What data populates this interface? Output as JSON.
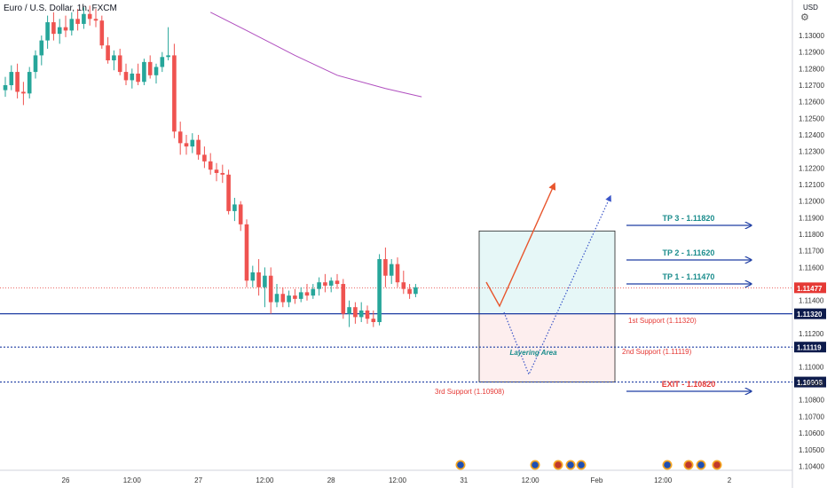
{
  "header": {
    "title": "Euro / U.S. Dollar, 1h, FXCM",
    "currency": "USD"
  },
  "colors": {
    "bull": "#26a69a",
    "bear": "#ef5350",
    "ma": "#b04fbf",
    "level": "#1e3da3",
    "support_text": "#e53935",
    "tp_text": "#1a8c8c",
    "price_tag": "#e53935",
    "green_zone": "#e6f7f7",
    "red_zone": "#fdeeee"
  },
  "chart_data": {
    "type": "candlestick",
    "title": "Euro / U.S. Dollar, 1h, FXCM",
    "y_axis": {
      "ylim": [
        1.1031,
        1.1356
      ],
      "ticks": [
        "1.13000",
        "1.12900",
        "1.12800",
        "1.12700",
        "1.12600",
        "1.12500",
        "1.12400",
        "1.12300",
        "1.12200",
        "1.12100",
        "1.12000",
        "1.11900",
        "1.11800",
        "1.11700",
        "1.11600",
        "1.11400",
        "1.11200",
        "1.11000",
        "1.10900",
        "1.10800",
        "1.10700",
        "1.10600",
        "1.10500",
        "1.10400"
      ],
      "tick_values": [
        1.13,
        1.129,
        1.128,
        1.127,
        1.126,
        1.125,
        1.124,
        1.123,
        1.122,
        1.121,
        1.12,
        1.119,
        1.118,
        1.117,
        1.116,
        1.114,
        1.112,
        1.11,
        1.109,
        1.108,
        1.107,
        1.106,
        1.105,
        1.104
      ]
    },
    "x_axis": {
      "labels": [
        "26",
        "12:00",
        "27",
        "12:00",
        "28",
        "12:00",
        "31",
        "12:00",
        "Feb",
        "12:00",
        "2"
      ],
      "label_bars": [
        10,
        21,
        32,
        43,
        54,
        65,
        76,
        87,
        98,
        109,
        120
      ]
    },
    "candles": [
      [
        1.1267,
        1.1275,
        1.1263,
        1.127
      ],
      [
        1.127,
        1.1282,
        1.1267,
        1.1278
      ],
      [
        1.1278,
        1.1283,
        1.1262,
        1.1266
      ],
      [
        1.1266,
        1.1272,
        1.1258,
        1.1265
      ],
      [
        1.1265,
        1.1281,
        1.1262,
        1.1278
      ],
      [
        1.1278,
        1.1291,
        1.1274,
        1.1288
      ],
      [
        1.1288,
        1.13,
        1.1282,
        1.1297
      ],
      [
        1.1297,
        1.1312,
        1.1292,
        1.1308
      ],
      [
        1.1308,
        1.1314,
        1.1297,
        1.1301
      ],
      [
        1.1301,
        1.131,
        1.1295,
        1.1305
      ],
      [
        1.1305,
        1.1312,
        1.1299,
        1.1303
      ],
      [
        1.1303,
        1.1314,
        1.13,
        1.131
      ],
      [
        1.131,
        1.1316,
        1.1303,
        1.1307
      ],
      [
        1.1307,
        1.1317,
        1.1304,
        1.1313
      ],
      [
        1.1313,
        1.1318,
        1.1306,
        1.131
      ],
      [
        1.131,
        1.1316,
        1.1305,
        1.1309
      ],
      [
        1.1309,
        1.1312,
        1.1292,
        1.1294
      ],
      [
        1.1294,
        1.1299,
        1.1283,
        1.1285
      ],
      [
        1.1285,
        1.1291,
        1.1279,
        1.1288
      ],
      [
        1.1288,
        1.1292,
        1.1276,
        1.1278
      ],
      [
        1.1278,
        1.1283,
        1.127,
        1.1273
      ],
      [
        1.1273,
        1.128,
        1.1268,
        1.1277
      ],
      [
        1.1277,
        1.1283,
        1.127,
        1.1272
      ],
      [
        1.1272,
        1.1286,
        1.127,
        1.1284
      ],
      [
        1.1284,
        1.1288,
        1.1274,
        1.1276
      ],
      [
        1.1276,
        1.1283,
        1.1271,
        1.1281
      ],
      [
        1.1281,
        1.129,
        1.1278,
        1.1287
      ],
      [
        1.1287,
        1.1305,
        1.1285,
        1.1288
      ],
      [
        1.1288,
        1.1295,
        1.1238,
        1.1242
      ],
      [
        1.1242,
        1.1248,
        1.1228,
        1.1235
      ],
      [
        1.1235,
        1.124,
        1.1228,
        1.1233
      ],
      [
        1.1233,
        1.1241,
        1.1229,
        1.1237
      ],
      [
        1.1237,
        1.124,
        1.1225,
        1.1228
      ],
      [
        1.1228,
        1.1233,
        1.122,
        1.1224
      ],
      [
        1.1224,
        1.1229,
        1.1216,
        1.1219
      ],
      [
        1.1219,
        1.1223,
        1.1212,
        1.1217
      ],
      [
        1.1217,
        1.1222,
        1.1211,
        1.1216
      ],
      [
        1.1216,
        1.1219,
        1.1192,
        1.1194
      ],
      [
        1.1194,
        1.1202,
        1.1188,
        1.1198
      ],
      [
        1.1198,
        1.12,
        1.1182,
        1.1186
      ],
      [
        1.1186,
        1.1189,
        1.1148,
        1.1152
      ],
      [
        1.1152,
        1.1161,
        1.1148,
        1.1157
      ],
      [
        1.1157,
        1.1165,
        1.1143,
        1.1148
      ],
      [
        1.1148,
        1.116,
        1.1136,
        1.1155
      ],
      [
        1.1155,
        1.116,
        1.1132,
        1.1139
      ],
      [
        1.1139,
        1.115,
        1.1136,
        1.1144
      ],
      [
        1.1144,
        1.1148,
        1.1136,
        1.1139
      ],
      [
        1.1139,
        1.1146,
        1.1136,
        1.1143
      ],
      [
        1.1143,
        1.1147,
        1.1138,
        1.1141
      ],
      [
        1.1141,
        1.1148,
        1.1139,
        1.1145
      ],
      [
        1.1145,
        1.115,
        1.114,
        1.1143
      ],
      [
        1.1143,
        1.115,
        1.1141,
        1.1147
      ],
      [
        1.1147,
        1.1154,
        1.1143,
        1.1151
      ],
      [
        1.1151,
        1.1156,
        1.1145,
        1.1149
      ],
      [
        1.1149,
        1.1154,
        1.1145,
        1.1152
      ],
      [
        1.1152,
        1.1156,
        1.1147,
        1.115
      ],
      [
        1.115,
        1.1153,
        1.1129,
        1.1132
      ],
      [
        1.1132,
        1.114,
        1.1124,
        1.1136
      ],
      [
        1.1136,
        1.1139,
        1.1126,
        1.113
      ],
      [
        1.113,
        1.1139,
        1.1127,
        1.1134
      ],
      [
        1.1134,
        1.1137,
        1.1126,
        1.1129
      ],
      [
        1.1129,
        1.1134,
        1.1124,
        1.1127
      ],
      [
        1.1127,
        1.1168,
        1.1125,
        1.1165
      ],
      [
        1.1165,
        1.1172,
        1.1148,
        1.1155
      ],
      [
        1.1155,
        1.1165,
        1.115,
        1.1162
      ],
      [
        1.1162,
        1.1166,
        1.1148,
        1.1151
      ],
      [
        1.1151,
        1.1158,
        1.1144,
        1.1147
      ],
      [
        1.1147,
        1.115,
        1.1141,
        1.1144
      ],
      [
        1.1144,
        1.115,
        1.1142,
        1.1148
      ]
    ],
    "ma_series": [
      [
        34,
        1.1314
      ],
      [
        40,
        1.1303
      ],
      [
        48,
        1.1288
      ],
      [
        55,
        1.1276
      ],
      [
        63,
        1.1268
      ],
      [
        69,
        1.1263
      ]
    ],
    "levels": [
      {
        "value": 1.1132,
        "label": "1.11320",
        "style": "solid"
      },
      {
        "value": 1.11119,
        "label": "1.11119",
        "style": "dotted"
      },
      {
        "value": 1.10908,
        "label": "1.10908",
        "style": "dotted"
      }
    ],
    "current_price": {
      "value": 1.11477,
      "label": "1.11477"
    },
    "zones": [
      {
        "kind": "target",
        "from": 1.1132,
        "to": 1.1182
      },
      {
        "kind": "layering",
        "from": 1.10908,
        "to": 1.1132
      }
    ],
    "annotations": {
      "layering": "Layering Area",
      "tp3": "TP 3 - 1.11820",
      "tp2": "TP 2 - 1.11620",
      "tp1": "TP 1 - 1.11470",
      "s1": "1st Support (1.11320)",
      "s2": "2nd Support (1.11119)",
      "s3": "3rd Support (1.10908)",
      "exit": "EXIT - 1.10820"
    },
    "event_icons": [
      "event-icon",
      "event-icon",
      "us-flag-icon",
      "eu-flag-icon",
      "event-icon",
      "event-icon",
      "us-flag-icon",
      "event-icon",
      "us-flag-icon"
    ]
  }
}
